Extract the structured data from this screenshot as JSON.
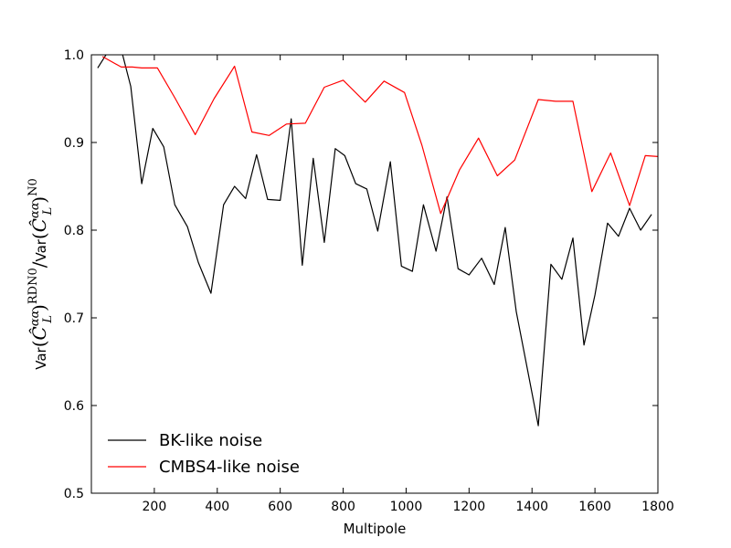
{
  "chart_data": {
    "type": "line",
    "xlabel": "Multipole",
    "ylabel": {
      "prefix": "Var",
      "numerator": "Var(Ĉ",
      "sub": "L",
      "sup_over": "αα",
      "sup_num": "RDN0",
      "sup_den": "N0",
      "slash": ")",
      "close": ")",
      "mid": "/Var(Ĉ"
    },
    "xlim": [
      0,
      1800
    ],
    "ylim": [
      0.5,
      1.0
    ],
    "xticks": [
      200,
      400,
      600,
      800,
      1000,
      1200,
      1400,
      1600,
      1800
    ],
    "xtick_labels": [
      "200",
      "400",
      "600",
      "800",
      "1000",
      "1200",
      "1400",
      "1600",
      "1800"
    ],
    "yticks": [
      0.5,
      0.6,
      0.7,
      0.8,
      0.9,
      1.0
    ],
    "ytick_labels": [
      "0.5",
      "0.6",
      "0.7",
      "0.8",
      "0.9",
      "1.0"
    ],
    "legend_position": "lower-left",
    "series": [
      {
        "name": "BK-like noise",
        "color": "#000000",
        "points": [
          [
            20,
            0.985
          ],
          [
            50,
            1.002
          ],
          [
            95,
            1.006
          ],
          [
            125,
            0.964
          ],
          [
            160,
            0.853
          ],
          [
            195,
            0.916
          ],
          [
            230,
            0.895
          ],
          [
            265,
            0.829
          ],
          [
            305,
            0.804
          ],
          [
            340,
            0.763
          ],
          [
            380,
            0.728
          ],
          [
            420,
            0.829
          ],
          [
            455,
            0.85
          ],
          [
            490,
            0.836
          ],
          [
            525,
            0.886
          ],
          [
            560,
            0.835
          ],
          [
            600,
            0.834
          ],
          [
            635,
            0.927
          ],
          [
            670,
            0.76
          ],
          [
            705,
            0.882
          ],
          [
            740,
            0.786
          ],
          [
            775,
            0.893
          ],
          [
            805,
            0.885
          ],
          [
            840,
            0.853
          ],
          [
            875,
            0.847
          ],
          [
            910,
            0.799
          ],
          [
            950,
            0.878
          ],
          [
            985,
            0.759
          ],
          [
            1020,
            0.753
          ],
          [
            1055,
            0.829
          ],
          [
            1095,
            0.776
          ],
          [
            1130,
            0.838
          ],
          [
            1165,
            0.756
          ],
          [
            1200,
            0.749
          ],
          [
            1240,
            0.768
          ],
          [
            1280,
            0.738
          ],
          [
            1315,
            0.803
          ],
          [
            1350,
            0.707
          ],
          [
            1385,
            0.642
          ],
          [
            1420,
            0.577
          ],
          [
            1460,
            0.761
          ],
          [
            1495,
            0.744
          ],
          [
            1530,
            0.791
          ],
          [
            1565,
            0.669
          ],
          [
            1600,
            0.726
          ],
          [
            1640,
            0.808
          ],
          [
            1675,
            0.793
          ],
          [
            1710,
            0.825
          ],
          [
            1745,
            0.8
          ],
          [
            1780,
            0.818
          ]
        ]
      },
      {
        "name": "CMBS4-like noise",
        "color": "#ff0000",
        "points": [
          [
            35,
            0.998
          ],
          [
            95,
            0.986
          ],
          [
            130,
            0.986
          ],
          [
            160,
            0.985
          ],
          [
            195,
            0.985
          ],
          [
            210,
            0.985
          ],
          [
            265,
            0.951
          ],
          [
            330,
            0.909
          ],
          [
            390,
            0.95
          ],
          [
            455,
            0.987
          ],
          [
            510,
            0.912
          ],
          [
            565,
            0.908
          ],
          [
            620,
            0.921
          ],
          [
            680,
            0.922
          ],
          [
            740,
            0.963
          ],
          [
            800,
            0.971
          ],
          [
            870,
            0.946
          ],
          [
            930,
            0.97
          ],
          [
            995,
            0.957
          ],
          [
            1050,
            0.897
          ],
          [
            1110,
            0.819
          ],
          [
            1170,
            0.869
          ],
          [
            1230,
            0.905
          ],
          [
            1290,
            0.862
          ],
          [
            1345,
            0.88
          ],
          [
            1420,
            0.949
          ],
          [
            1475,
            0.947
          ],
          [
            1530,
            0.947
          ],
          [
            1590,
            0.844
          ],
          [
            1650,
            0.888
          ],
          [
            1710,
            0.828
          ],
          [
            1760,
            0.885
          ],
          [
            1800,
            0.884
          ]
        ]
      }
    ]
  }
}
